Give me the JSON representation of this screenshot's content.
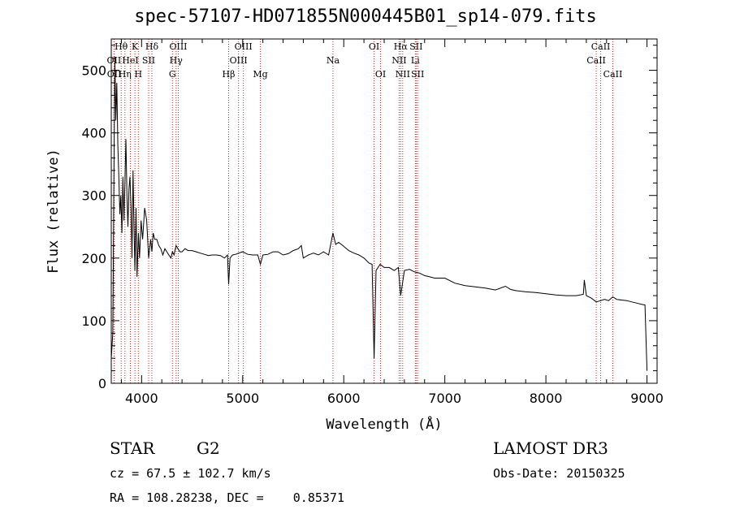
{
  "header": {
    "title": "spec-57107-HD071855N000445B01_sp14-079.fits"
  },
  "info": {
    "object_class": "STAR",
    "subclass": "G2",
    "survey": "LAMOST DR3",
    "cz": "cz = 67.5 ± 102.7 km/s",
    "obs_date": "Obs-Date: 20150325",
    "radec": "RA = 108.28238, DEC =    0.85371"
  },
  "chart_data": {
    "type": "line",
    "xlabel": "Wavelength (Å)",
    "ylabel": "Flux (relative)",
    "xlim": [
      3700,
      9100
    ],
    "ylim": [
      0,
      550
    ],
    "x_ticks": [
      4000,
      5000,
      6000,
      7000,
      8000,
      9000
    ],
    "y_ticks": [
      0,
      100,
      200,
      300,
      400,
      500
    ],
    "colors": {
      "line": "#000000",
      "marker": "#cc2222"
    },
    "line_markers": [
      {
        "label": "Hθ",
        "x": 3798,
        "row": 0
      },
      {
        "label": "OII",
        "x": 3727,
        "row": 1
      },
      {
        "label": "OII",
        "x": 3729,
        "row": 2
      },
      {
        "label": "Hη",
        "x": 3835,
        "row": 2
      },
      {
        "label": "K",
        "x": 3934,
        "row": 0
      },
      {
        "label": "HeI",
        "x": 3889,
        "row": 1
      },
      {
        "label": "H",
        "x": 3968,
        "row": 2
      },
      {
        "label": "Hδ",
        "x": 4102,
        "row": 0
      },
      {
        "label": "SII",
        "x": 4070,
        "row": 1
      },
      {
        "label": "OIII",
        "x": 4363,
        "row": 0
      },
      {
        "label": "Hγ",
        "x": 4341,
        "row": 1
      },
      {
        "label": "G",
        "x": 4305,
        "row": 2
      },
      {
        "label": "Hβ",
        "x": 4861,
        "row": 2
      },
      {
        "label": "OIII",
        "x": 5007,
        "row": 0
      },
      {
        "label": "OIII",
        "x": 4959,
        "row": 1
      },
      {
        "label": "Mg",
        "x": 5175,
        "row": 2
      },
      {
        "label": "Na",
        "x": 5893,
        "row": 1
      },
      {
        "label": "OI",
        "x": 6300,
        "row": 0
      },
      {
        "label": "OI",
        "x": 6364,
        "row": 2
      },
      {
        "label": "Hα",
        "x": 6563,
        "row": 0
      },
      {
        "label": "SII",
        "x": 6716,
        "row": 0
      },
      {
        "label": "NII",
        "x": 6548,
        "row": 1
      },
      {
        "label": "Li",
        "x": 6708,
        "row": 1
      },
      {
        "label": "NII",
        "x": 6583,
        "row": 2
      },
      {
        "label": "SII",
        "x": 6731,
        "row": 2
      },
      {
        "label": "CaII",
        "x": 8542,
        "row": 0
      },
      {
        "label": "CaII",
        "x": 8498,
        "row": 1
      },
      {
        "label": "CaII",
        "x": 8662,
        "row": 2
      }
    ],
    "series": [
      {
        "x": [
          3700,
          3715,
          3725,
          3735,
          3745,
          3755,
          3765,
          3775,
          3785,
          3795,
          3805,
          3815,
          3825,
          3835,
          3845,
          3855,
          3865,
          3875,
          3885,
          3895,
          3905,
          3915,
          3925,
          3934,
          3945,
          3955,
          3968,
          3980,
          3995,
          4010,
          4030,
          4050,
          4070,
          4090,
          4102,
          4115,
          4130,
          4150,
          4170,
          4190,
          4210,
          4230,
          4250,
          4270,
          4290,
          4305,
          4320,
          4341,
          4360,
          4380,
          4400,
          4430,
          4460,
          4500,
          4540,
          4580,
          4620,
          4660,
          4700,
          4740,
          4780,
          4820,
          4850,
          4861,
          4875,
          4900,
          4930,
          4960,
          5000,
          5050,
          5100,
          5150,
          5175,
          5200,
          5250,
          5300,
          5350,
          5400,
          5450,
          5500,
          5550,
          5580,
          5600,
          5650,
          5700,
          5750,
          5800,
          5850,
          5893,
          5920,
          5950,
          5990,
          6050,
          6100,
          6150,
          6200,
          6250,
          6280,
          6300,
          6320,
          6360,
          6400,
          6450,
          6500,
          6540,
          6563,
          6600,
          6650,
          6700,
          6750,
          6800,
          6850,
          6900,
          7000,
          7100,
          7200,
          7300,
          7400,
          7500,
          7600,
          7650,
          7700,
          7800,
          7900,
          8000,
          8100,
          8200,
          8300,
          8370,
          8380,
          8400,
          8450,
          8498,
          8542,
          8580,
          8620,
          8662,
          8700,
          8750,
          8800,
          8850,
          8900,
          8950,
          8980,
          9000
        ],
        "y": [
          40,
          80,
          300,
          520,
          420,
          480,
          380,
          330,
          270,
          300,
          240,
          330,
          260,
          320,
          390,
          300,
          250,
          310,
          330,
          280,
          200,
          340,
          250,
          180,
          280,
          170,
          240,
          200,
          260,
          230,
          280,
          260,
          200,
          230,
          210,
          240,
          230,
          230,
          220,
          215,
          205,
          215,
          210,
          205,
          200,
          210,
          205,
          220,
          215,
          210,
          210,
          215,
          212,
          212,
          210,
          208,
          206,
          204,
          205,
          205,
          204,
          200,
          205,
          158,
          200,
          205,
          206,
          208,
          210,
          206,
          205,
          205,
          190,
          205,
          206,
          210,
          210,
          205,
          207,
          212,
          215,
          220,
          200,
          205,
          208,
          205,
          210,
          205,
          240,
          222,
          225,
          220,
          212,
          208,
          205,
          200,
          192,
          190,
          40,
          180,
          190,
          185,
          185,
          180,
          185,
          140,
          180,
          182,
          178,
          176,
          172,
          170,
          168,
          168,
          160,
          156,
          154,
          152,
          149,
          155,
          150,
          148,
          146,
          145,
          143,
          141,
          140,
          140,
          142,
          165,
          140,
          136,
          130,
          132,
          134,
          132,
          138,
          134,
          133,
          132,
          130,
          128,
          126,
          125,
          20
        ]
      }
    ]
  }
}
